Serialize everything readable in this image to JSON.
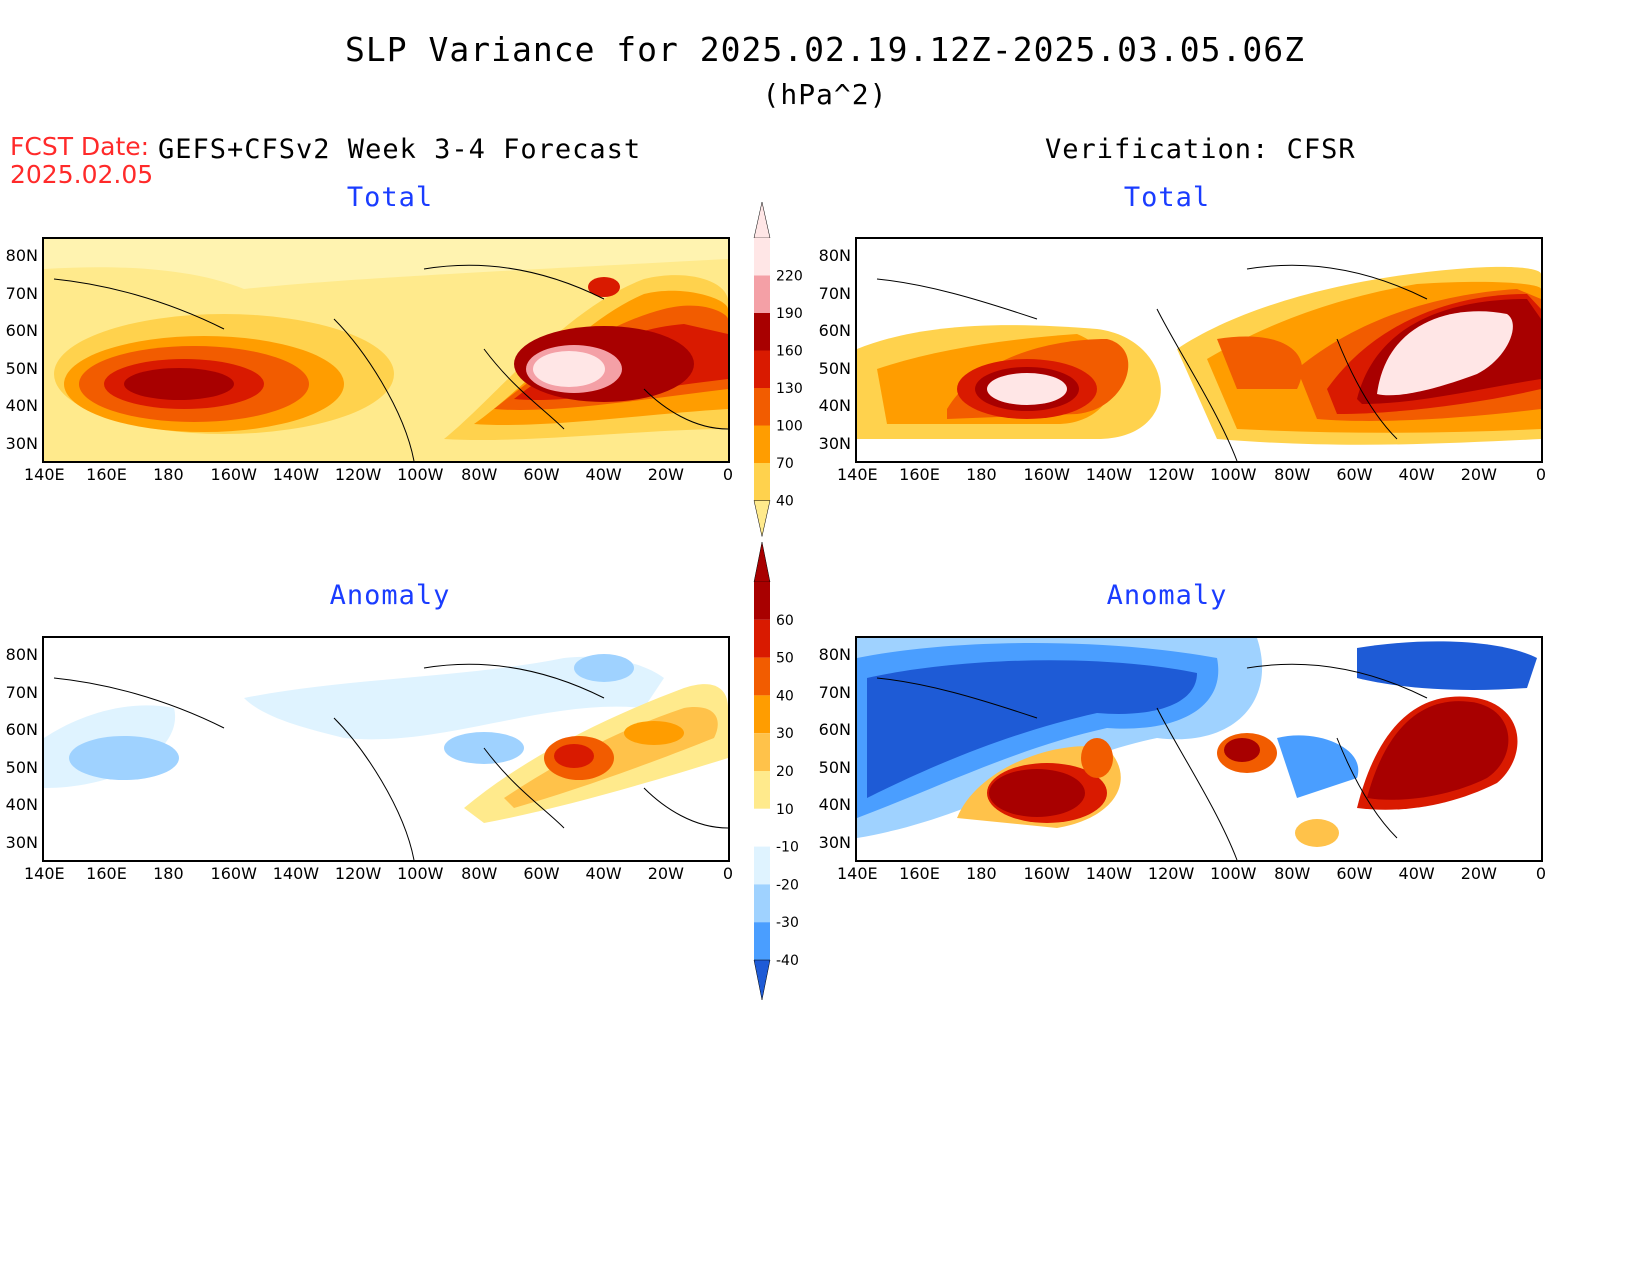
{
  "header": {
    "title": "SLP Variance for 2025.02.19.12Z-2025.03.05.06Z",
    "units": "(hPa^2)",
    "fcst_label": "FCST Date:",
    "fcst_date": "2025.02.05",
    "left_subtitle": "GEFS+CFSv2 Week 3-4 Forecast",
    "right_subtitle": "Verification: CFSR"
  },
  "panels": {
    "total_label": "Total",
    "anomaly_label": "Anomaly"
  },
  "axes": {
    "lon_ticks": [
      "140E",
      "160E",
      "180",
      "160W",
      "140W",
      "120W",
      "100W",
      "80W",
      "60W",
      "40W",
      "20W",
      "0"
    ],
    "lat_ticks": [
      "80N",
      "70N",
      "60N",
      "50N",
      "40N",
      "30N"
    ]
  },
  "colorbar_total": {
    "levels": [
      "220",
      "190",
      "160",
      "130",
      "100",
      "70",
      "40"
    ],
    "colors": [
      "#ffe6e6",
      "#f4a0a6",
      "#a80000",
      "#d91a00",
      "#f25c00",
      "#ff9d00",
      "#ffd24d",
      "#ffea8c"
    ]
  },
  "colorbar_anom": {
    "levels": [
      "60",
      "50",
      "40",
      "30",
      "20",
      "10",
      "-10",
      "-20",
      "-30",
      "-40"
    ],
    "colors": [
      "#a80000",
      "#d91a00",
      "#f25c00",
      "#ff9d00",
      "#ffc24a",
      "#ffea8c",
      "#ffffff",
      "#dff3ff",
      "#9fd2ff",
      "#4a9eff",
      "#1e5bd6"
    ]
  }
}
